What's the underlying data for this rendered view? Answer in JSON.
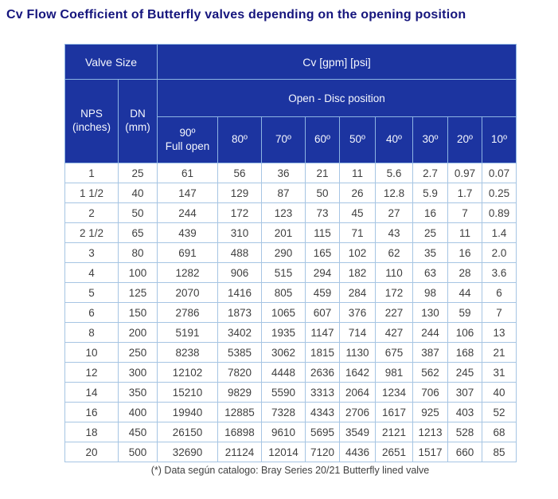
{
  "page": {
    "title": "Cv Flow Coefficient of Butterfly valves depending on the opening position",
    "footnote": "(*) Data según catalogo: Bray Series 20/21 Butterfly lined valve"
  },
  "colors": {
    "title_text": "#15157d",
    "header_bg": "#1c34a0",
    "header_grid": "#8db4e2",
    "header_text": "#ffffff",
    "cell_border": "#a6c5e3",
    "cell_text": "#404040",
    "page_bg": "#ffffff"
  },
  "table": {
    "header": {
      "valve_size": "Valve Size",
      "cv_units": "Cv [gpm] [psi]",
      "nps": "NPS\n(inches)",
      "dn": "DN\n(mm)",
      "open_disc": "Open - Disc position",
      "degrees": [
        "90º\nFull open",
        "80º",
        "70º",
        "60º",
        "50º",
        "40º",
        "30º",
        "20º",
        "10º"
      ]
    },
    "rows": [
      {
        "nps": "1",
        "dn": "25",
        "values": [
          "61",
          "56",
          "36",
          "21",
          "11",
          "5.6",
          "2.7",
          "0.97",
          "0.07"
        ]
      },
      {
        "nps": "1 1/2",
        "dn": "40",
        "values": [
          "147",
          "129",
          "87",
          "50",
          "26",
          "12.8",
          "5.9",
          "1.7",
          "0.25"
        ]
      },
      {
        "nps": "2",
        "dn": "50",
        "values": [
          "244",
          "172",
          "123",
          "73",
          "45",
          "27",
          "16",
          "7",
          "0.89"
        ]
      },
      {
        "nps": "2 1/2",
        "dn": "65",
        "values": [
          "439",
          "310",
          "201",
          "115",
          "71",
          "43",
          "25",
          "11",
          "1.4"
        ]
      },
      {
        "nps": "3",
        "dn": "80",
        "values": [
          "691",
          "488",
          "290",
          "165",
          "102",
          "62",
          "35",
          "16",
          "2.0"
        ]
      },
      {
        "nps": "4",
        "dn": "100",
        "values": [
          "1282",
          "906",
          "515",
          "294",
          "182",
          "110",
          "63",
          "28",
          "3.6"
        ]
      },
      {
        "nps": "5",
        "dn": "125",
        "values": [
          "2070",
          "1416",
          "805",
          "459",
          "284",
          "172",
          "98",
          "44",
          "6"
        ]
      },
      {
        "nps": "6",
        "dn": "150",
        "values": [
          "2786",
          "1873",
          "1065",
          "607",
          "376",
          "227",
          "130",
          "59",
          "7"
        ]
      },
      {
        "nps": "8",
        "dn": "200",
        "values": [
          "5191",
          "3402",
          "1935",
          "1147",
          "714",
          "427",
          "244",
          "106",
          "13"
        ]
      },
      {
        "nps": "10",
        "dn": "250",
        "values": [
          "8238",
          "5385",
          "3062",
          "1815",
          "1130",
          "675",
          "387",
          "168",
          "21"
        ]
      },
      {
        "nps": "12",
        "dn": "300",
        "values": [
          "12102",
          "7820",
          "4448",
          "2636",
          "1642",
          "981",
          "562",
          "245",
          "31"
        ]
      },
      {
        "nps": "14",
        "dn": "350",
        "values": [
          "15210",
          "9829",
          "5590",
          "3313",
          "2064",
          "1234",
          "706",
          "307",
          "40"
        ]
      },
      {
        "nps": "16",
        "dn": "400",
        "values": [
          "19940",
          "12885",
          "7328",
          "4343",
          "2706",
          "1617",
          "925",
          "403",
          "52"
        ]
      },
      {
        "nps": "18",
        "dn": "450",
        "values": [
          "26150",
          "16898",
          "9610",
          "5695",
          "3549",
          "2121",
          "1213",
          "528",
          "68"
        ]
      },
      {
        "nps": "20",
        "dn": "500",
        "values": [
          "32690",
          "21124",
          "12014",
          "7120",
          "4436",
          "2651",
          "1517",
          "660",
          "85"
        ]
      }
    ]
  }
}
